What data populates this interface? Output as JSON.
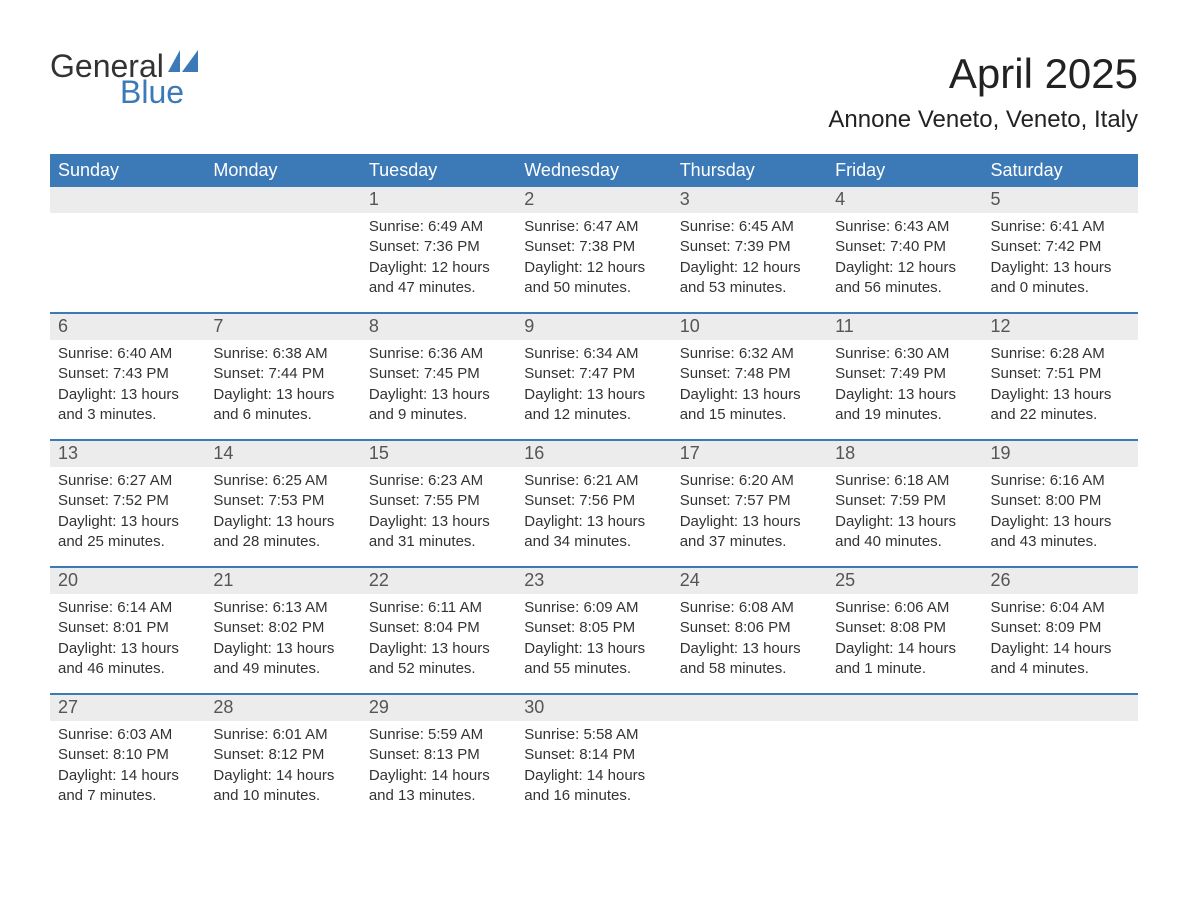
{
  "logo": {
    "text_general": "General",
    "text_blue": "Blue"
  },
  "title": "April 2025",
  "location": "Annone Veneto, Veneto, Italy",
  "colors": {
    "header_bg": "#3b79b7",
    "header_text": "#ffffff",
    "daynum_bg": "#ececec",
    "body_text": "#333333",
    "week_border": "#3b79b7",
    "page_bg": "#ffffff"
  },
  "weekdays": [
    "Sunday",
    "Monday",
    "Tuesday",
    "Wednesday",
    "Thursday",
    "Friday",
    "Saturday"
  ],
  "weeks": [
    [
      {
        "day": ""
      },
      {
        "day": ""
      },
      {
        "day": "1",
        "sunrise": "Sunrise: 6:49 AM",
        "sunset": "Sunset: 7:36 PM",
        "daylight1": "Daylight: 12 hours",
        "daylight2": "and 47 minutes."
      },
      {
        "day": "2",
        "sunrise": "Sunrise: 6:47 AM",
        "sunset": "Sunset: 7:38 PM",
        "daylight1": "Daylight: 12 hours",
        "daylight2": "and 50 minutes."
      },
      {
        "day": "3",
        "sunrise": "Sunrise: 6:45 AM",
        "sunset": "Sunset: 7:39 PM",
        "daylight1": "Daylight: 12 hours",
        "daylight2": "and 53 minutes."
      },
      {
        "day": "4",
        "sunrise": "Sunrise: 6:43 AM",
        "sunset": "Sunset: 7:40 PM",
        "daylight1": "Daylight: 12 hours",
        "daylight2": "and 56 minutes."
      },
      {
        "day": "5",
        "sunrise": "Sunrise: 6:41 AM",
        "sunset": "Sunset: 7:42 PM",
        "daylight1": "Daylight: 13 hours",
        "daylight2": "and 0 minutes."
      }
    ],
    [
      {
        "day": "6",
        "sunrise": "Sunrise: 6:40 AM",
        "sunset": "Sunset: 7:43 PM",
        "daylight1": "Daylight: 13 hours",
        "daylight2": "and 3 minutes."
      },
      {
        "day": "7",
        "sunrise": "Sunrise: 6:38 AM",
        "sunset": "Sunset: 7:44 PM",
        "daylight1": "Daylight: 13 hours",
        "daylight2": "and 6 minutes."
      },
      {
        "day": "8",
        "sunrise": "Sunrise: 6:36 AM",
        "sunset": "Sunset: 7:45 PM",
        "daylight1": "Daylight: 13 hours",
        "daylight2": "and 9 minutes."
      },
      {
        "day": "9",
        "sunrise": "Sunrise: 6:34 AM",
        "sunset": "Sunset: 7:47 PM",
        "daylight1": "Daylight: 13 hours",
        "daylight2": "and 12 minutes."
      },
      {
        "day": "10",
        "sunrise": "Sunrise: 6:32 AM",
        "sunset": "Sunset: 7:48 PM",
        "daylight1": "Daylight: 13 hours",
        "daylight2": "and 15 minutes."
      },
      {
        "day": "11",
        "sunrise": "Sunrise: 6:30 AM",
        "sunset": "Sunset: 7:49 PM",
        "daylight1": "Daylight: 13 hours",
        "daylight2": "and 19 minutes."
      },
      {
        "day": "12",
        "sunrise": "Sunrise: 6:28 AM",
        "sunset": "Sunset: 7:51 PM",
        "daylight1": "Daylight: 13 hours",
        "daylight2": "and 22 minutes."
      }
    ],
    [
      {
        "day": "13",
        "sunrise": "Sunrise: 6:27 AM",
        "sunset": "Sunset: 7:52 PM",
        "daylight1": "Daylight: 13 hours",
        "daylight2": "and 25 minutes."
      },
      {
        "day": "14",
        "sunrise": "Sunrise: 6:25 AM",
        "sunset": "Sunset: 7:53 PM",
        "daylight1": "Daylight: 13 hours",
        "daylight2": "and 28 minutes."
      },
      {
        "day": "15",
        "sunrise": "Sunrise: 6:23 AM",
        "sunset": "Sunset: 7:55 PM",
        "daylight1": "Daylight: 13 hours",
        "daylight2": "and 31 minutes."
      },
      {
        "day": "16",
        "sunrise": "Sunrise: 6:21 AM",
        "sunset": "Sunset: 7:56 PM",
        "daylight1": "Daylight: 13 hours",
        "daylight2": "and 34 minutes."
      },
      {
        "day": "17",
        "sunrise": "Sunrise: 6:20 AM",
        "sunset": "Sunset: 7:57 PM",
        "daylight1": "Daylight: 13 hours",
        "daylight2": "and 37 minutes."
      },
      {
        "day": "18",
        "sunrise": "Sunrise: 6:18 AM",
        "sunset": "Sunset: 7:59 PM",
        "daylight1": "Daylight: 13 hours",
        "daylight2": "and 40 minutes."
      },
      {
        "day": "19",
        "sunrise": "Sunrise: 6:16 AM",
        "sunset": "Sunset: 8:00 PM",
        "daylight1": "Daylight: 13 hours",
        "daylight2": "and 43 minutes."
      }
    ],
    [
      {
        "day": "20",
        "sunrise": "Sunrise: 6:14 AM",
        "sunset": "Sunset: 8:01 PM",
        "daylight1": "Daylight: 13 hours",
        "daylight2": "and 46 minutes."
      },
      {
        "day": "21",
        "sunrise": "Sunrise: 6:13 AM",
        "sunset": "Sunset: 8:02 PM",
        "daylight1": "Daylight: 13 hours",
        "daylight2": "and 49 minutes."
      },
      {
        "day": "22",
        "sunrise": "Sunrise: 6:11 AM",
        "sunset": "Sunset: 8:04 PM",
        "daylight1": "Daylight: 13 hours",
        "daylight2": "and 52 minutes."
      },
      {
        "day": "23",
        "sunrise": "Sunrise: 6:09 AM",
        "sunset": "Sunset: 8:05 PM",
        "daylight1": "Daylight: 13 hours",
        "daylight2": "and 55 minutes."
      },
      {
        "day": "24",
        "sunrise": "Sunrise: 6:08 AM",
        "sunset": "Sunset: 8:06 PM",
        "daylight1": "Daylight: 13 hours",
        "daylight2": "and 58 minutes."
      },
      {
        "day": "25",
        "sunrise": "Sunrise: 6:06 AM",
        "sunset": "Sunset: 8:08 PM",
        "daylight1": "Daylight: 14 hours",
        "daylight2": "and 1 minute."
      },
      {
        "day": "26",
        "sunrise": "Sunrise: 6:04 AM",
        "sunset": "Sunset: 8:09 PM",
        "daylight1": "Daylight: 14 hours",
        "daylight2": "and 4 minutes."
      }
    ],
    [
      {
        "day": "27",
        "sunrise": "Sunrise: 6:03 AM",
        "sunset": "Sunset: 8:10 PM",
        "daylight1": "Daylight: 14 hours",
        "daylight2": "and 7 minutes."
      },
      {
        "day": "28",
        "sunrise": "Sunrise: 6:01 AM",
        "sunset": "Sunset: 8:12 PM",
        "daylight1": "Daylight: 14 hours",
        "daylight2": "and 10 minutes."
      },
      {
        "day": "29",
        "sunrise": "Sunrise: 5:59 AM",
        "sunset": "Sunset: 8:13 PM",
        "daylight1": "Daylight: 14 hours",
        "daylight2": "and 13 minutes."
      },
      {
        "day": "30",
        "sunrise": "Sunrise: 5:58 AM",
        "sunset": "Sunset: 8:14 PM",
        "daylight1": "Daylight: 14 hours",
        "daylight2": "and 16 minutes."
      },
      {
        "day": ""
      },
      {
        "day": ""
      },
      {
        "day": ""
      }
    ]
  ]
}
